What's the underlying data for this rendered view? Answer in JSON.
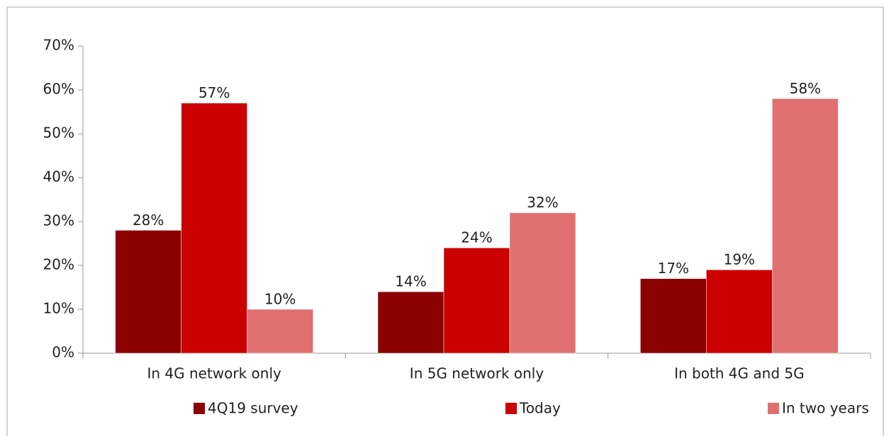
{
  "chart_data": {
    "type": "bar",
    "categories": [
      "In 4G network only",
      "In 5G network only",
      "In both 4G and 5G"
    ],
    "series": [
      {
        "name": "4Q19 survey",
        "color": "#8b0000",
        "values": [
          28,
          14,
          17
        ],
        "value_labels": [
          "28%",
          "14%",
          "17%"
        ]
      },
      {
        "name": "Today",
        "color": "#cc0000",
        "values": [
          57,
          24,
          19
        ],
        "value_labels": [
          "57%",
          "24%",
          "19%"
        ]
      },
      {
        "name": "In two years",
        "color": "#e07070",
        "values": [
          10,
          32,
          58
        ],
        "value_labels": [
          "10%",
          "32%",
          "58%"
        ]
      }
    ],
    "ylim": [
      0,
      70
    ],
    "yticks": [
      {
        "value": 0,
        "label": "0%"
      },
      {
        "value": 10,
        "label": "10%"
      },
      {
        "value": 20,
        "label": "20%"
      },
      {
        "value": 30,
        "label": "30%"
      },
      {
        "value": 40,
        "label": "40%"
      },
      {
        "value": 50,
        "label": "50%"
      },
      {
        "value": 60,
        "label": "60%"
      },
      {
        "value": 70,
        "label": "70%"
      }
    ],
    "grid": false,
    "legend": "bottom"
  }
}
